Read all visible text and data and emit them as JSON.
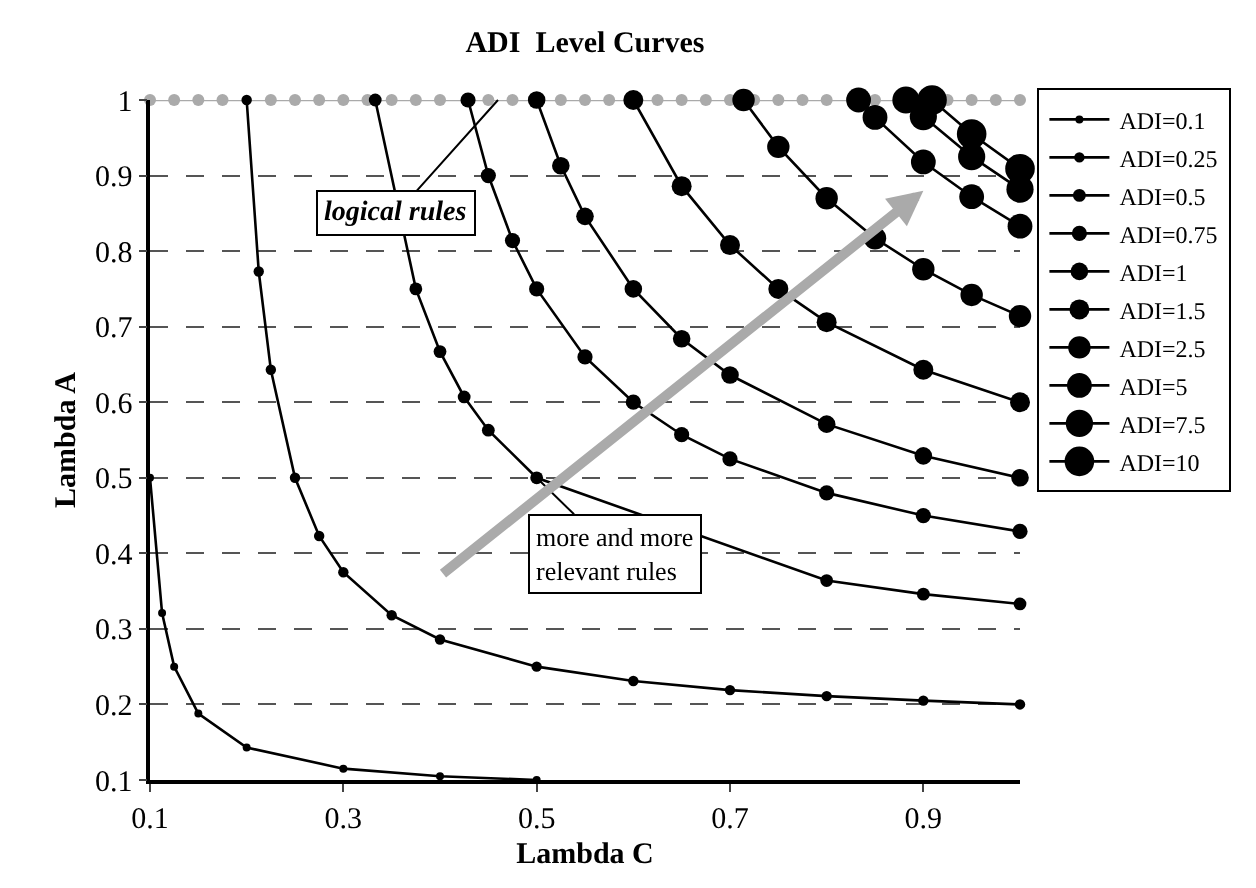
{
  "chart_data": {
    "type": "line",
    "title": "ADI  Level Curves",
    "xlabel": "Lambda C",
    "ylabel": "Lambda A",
    "xlim": [
      0.1,
      1
    ],
    "xticks": [
      0.1,
      0.3,
      0.5,
      0.7,
      0.9
    ],
    "ylim": [
      0.1,
      1
    ],
    "yticks": [
      0.1,
      0.2,
      0.3,
      0.4,
      0.5,
      0.6,
      0.7,
      0.8,
      0.9,
      1
    ],
    "grid": "y",
    "legend": "right",
    "marker": "circle",
    "line_style": "solid",
    "series": [
      {
        "name": "ADI=0.1",
        "color": "#000000",
        "x": [
          0.1,
          0.1125,
          0.125,
          0.15,
          0.2,
          0.3,
          0.4,
          0.5
        ],
        "values": [
          0.5,
          0.321,
          0.25,
          0.188,
          0.143,
          0.115,
          0.105,
          0.1
        ]
      },
      {
        "name": "ADI=0.25",
        "color": "#000000",
        "x": [
          0.2,
          0.2125,
          0.225,
          0.25,
          0.275,
          0.3,
          0.35,
          0.4,
          0.5,
          0.6,
          0.7,
          0.8,
          0.9,
          1.0
        ],
        "values": [
          1.0,
          0.773,
          0.643,
          0.5,
          0.423,
          0.375,
          0.318,
          0.286,
          0.25,
          0.231,
          0.219,
          0.211,
          0.205,
          0.2
        ]
      },
      {
        "name": "ADI=0.5",
        "color": "#000000",
        "x": [
          0.333,
          0.375,
          0.4,
          0.425,
          0.45,
          0.5,
          0.55,
          0.6,
          0.7,
          0.8,
          0.9,
          1.0
        ],
        "values": [
          1.0,
          0.75,
          0.667,
          0.607,
          0.563,
          0.5,
          null,
          null,
          null,
          0.364,
          0.346,
          0.333
        ]
      },
      {
        "name": "ADI=0.75",
        "color": "#000000",
        "x": [
          0.429,
          0.45,
          0.475,
          0.5,
          0.55,
          0.6,
          0.65,
          0.7,
          0.8,
          0.9,
          1.0
        ],
        "values": [
          1.0,
          0.9,
          0.814,
          0.75,
          0.66,
          0.6,
          0.557,
          0.525,
          0.48,
          0.45,
          0.429
        ]
      },
      {
        "name": "ADI=1",
        "color": "#000000",
        "x": [
          0.5,
          0.525,
          0.55,
          0.6,
          0.65,
          0.7,
          0.8,
          0.9,
          1.0
        ],
        "values": [
          1.0,
          0.913,
          0.846,
          0.75,
          0.684,
          0.636,
          0.571,
          0.529,
          0.5
        ]
      },
      {
        "name": "ADI=1.5",
        "color": "#000000",
        "x": [
          0.6,
          0.65,
          0.7,
          0.75,
          0.8,
          0.9,
          1.0
        ],
        "values": [
          1.0,
          0.886,
          0.808,
          0.75,
          0.706,
          0.643,
          0.6
        ]
      },
      {
        "name": "ADI=2.5",
        "color": "#000000",
        "x": [
          0.714,
          0.75,
          0.8,
          0.85,
          0.9,
          0.95,
          1.0
        ],
        "values": [
          1.0,
          0.938,
          0.87,
          0.817,
          0.776,
          0.742,
          0.714
        ]
      },
      {
        "name": "ADI=5",
        "color": "#000000",
        "x": [
          0.833,
          0.85,
          0.9,
          0.95,
          1.0
        ],
        "values": [
          1.0,
          0.977,
          0.918,
          0.872,
          0.833
        ]
      },
      {
        "name": "ADI=7.5",
        "color": "#000000",
        "x": [
          0.882,
          0.9,
          0.95,
          1.0
        ],
        "values": [
          1.0,
          0.978,
          0.925,
          0.882
        ]
      },
      {
        "name": "ADI=10",
        "color": "#000000",
        "x": [
          0.909,
          0.95,
          1.0
        ],
        "values": [
          1.0,
          0.955,
          0.909
        ]
      },
      {
        "color": "#aaaaaa",
        "x": [
          0.1,
          0.125,
          0.15,
          0.175,
          0.2,
          0.225,
          0.25,
          0.275,
          0.3,
          0.325,
          0.35,
          0.375,
          0.4,
          0.425,
          0.45,
          0.475,
          0.5,
          0.525,
          0.55,
          0.575,
          0.6,
          0.625,
          0.65,
          0.675,
          0.7,
          0.725,
          0.75,
          0.775,
          0.8,
          0.825,
          0.85,
          0.875,
          0.9,
          0.925,
          0.95,
          0.975,
          1.0
        ],
        "values": [
          1,
          1,
          1,
          1,
          null,
          1,
          1,
          1,
          1,
          1,
          1,
          1,
          1,
          null,
          1,
          1,
          1,
          1,
          1,
          1,
          1,
          1,
          1,
          1,
          1,
          1,
          1,
          1,
          1,
          null,
          1,
          1,
          1,
          1,
          1,
          1,
          1
        ]
      }
    ],
    "annotations": [
      {
        "text": "logical rules",
        "x": 0.46,
        "y": 1
      },
      {
        "text": "more and more\nrelevant rules",
        "x": 0.5,
        "y": 0.5
      }
    ]
  }
}
